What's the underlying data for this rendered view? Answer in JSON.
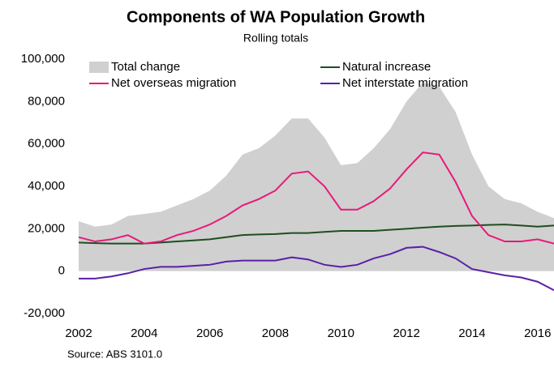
{
  "chart_data": {
    "type": "line",
    "title": "Components of WA Population Growth",
    "subtitle": "Rolling totals",
    "source": "Source: ABS 3101.0",
    "x": [
      2002,
      2002.5,
      2003,
      2003.5,
      2004,
      2004.5,
      2005,
      2005.5,
      2006,
      2006.5,
      2007,
      2007.5,
      2008,
      2008.5,
      2009,
      2009.5,
      2010,
      2010.5,
      2011,
      2011.5,
      2012,
      2012.5,
      2013,
      2013.5,
      2014,
      2014.5,
      2015,
      2015.5,
      2016,
      2016.5
    ],
    "series": [
      {
        "name": "Total change",
        "type": "area",
        "color": "#d0d0d0",
        "values": [
          23500,
          21000,
          22000,
          26000,
          27000,
          28000,
          31000,
          34000,
          38000,
          45000,
          55000,
          58000,
          64000,
          72000,
          72000,
          63000,
          50000,
          51000,
          58000,
          67000,
          80000,
          89000,
          87000,
          75000,
          55000,
          40000,
          34000,
          32000,
          28000,
          25000
        ]
      },
      {
        "name": "Natural increase",
        "type": "line",
        "color": "#1f4e1f",
        "values": [
          13500,
          13200,
          13000,
          13000,
          13000,
          13500,
          14000,
          14500,
          15000,
          16000,
          17000,
          17300,
          17500,
          18000,
          18000,
          18500,
          19000,
          19000,
          19000,
          19500,
          20000,
          20500,
          21000,
          21300,
          21500,
          21800,
          22000,
          21500,
          21000,
          21500
        ]
      },
      {
        "name": "Net overseas migration",
        "type": "line",
        "color": "#e8197a",
        "values": [
          16000,
          14000,
          15000,
          17000,
          13000,
          14000,
          17000,
          19000,
          22000,
          26000,
          31000,
          34000,
          38000,
          46000,
          47000,
          40000,
          29000,
          29000,
          33000,
          39000,
          48000,
          56000,
          55000,
          42000,
          26000,
          17000,
          14000,
          14000,
          15000,
          13000
        ]
      },
      {
        "name": "Net interstate migration",
        "type": "line",
        "color": "#5b1fa8",
        "values": [
          -3500,
          -3500,
          -2500,
          -1000,
          1000,
          2000,
          2000,
          2500,
          3000,
          4500,
          5000,
          5000,
          5000,
          6500,
          5500,
          3000,
          2000,
          3000,
          6000,
          8000,
          11000,
          11500,
          9000,
          6000,
          1000,
          -500,
          -2000,
          -3000,
          -5000,
          -9000
        ]
      }
    ],
    "xlim": [
      2002,
      2016.5
    ],
    "xticks": [
      2002,
      2004,
      2006,
      2008,
      2010,
      2012,
      2014,
      2016
    ],
    "ylim": [
      -20000,
      100000
    ],
    "yticks": [
      {
        "value": -20000,
        "label": "-20,000"
      },
      0,
      {
        "value": 20000,
        "label": "20,000"
      },
      {
        "value": 40000,
        "label": "40,000"
      },
      {
        "value": 60000,
        "label": "60,000"
      },
      {
        "value": 80000,
        "label": "80,000"
      },
      {
        "value": 100000,
        "label": "100,000"
      }
    ],
    "grid": false
  }
}
